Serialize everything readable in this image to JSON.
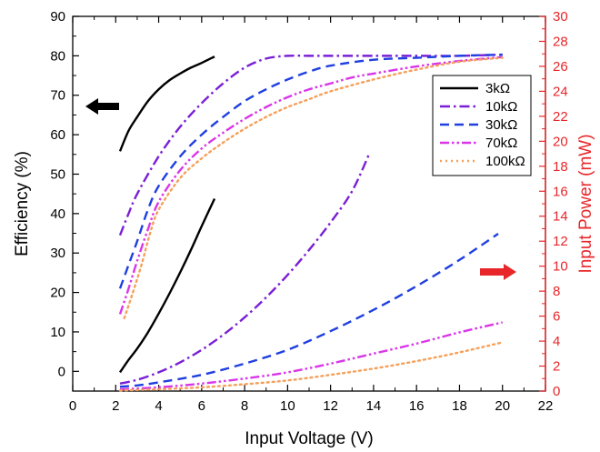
{
  "chart_data": {
    "type": "line",
    "xlabel": "Input Voltage (V)",
    "ylabel_left": "Efficiency (%)",
    "ylabel_right": "Input Power (mW)",
    "xlim": [
      0,
      22
    ],
    "ylim_left": [
      -5,
      90
    ],
    "ylim_right": [
      0,
      30
    ],
    "xticks": [
      "0",
      "2",
      "4",
      "6",
      "8",
      "10",
      "12",
      "14",
      "16",
      "18",
      "20",
      "22"
    ],
    "yticks_left": [
      "0",
      "10",
      "20",
      "30",
      "40",
      "50",
      "60",
      "70",
      "80",
      "90"
    ],
    "yticks_right": [
      "0",
      "2",
      "4",
      "6",
      "8",
      "10",
      "12",
      "14",
      "16",
      "18",
      "20",
      "22",
      "24",
      "26",
      "28",
      "30"
    ],
    "right_axis_color": "#e8262a",
    "grid": false,
    "legend_position": "top-right",
    "series": [
      {
        "name": "3kΩ",
        "color": "#000000",
        "dash": "solid"
      },
      {
        "name": "10kΩ",
        "color": "#7a1fd6",
        "dash": "dashdot"
      },
      {
        "name": "30kΩ",
        "color": "#1f3fe0",
        "dash": "dash"
      },
      {
        "name": "70kΩ",
        "color": "#d936e8",
        "dash": "dashdotdot"
      },
      {
        "name": "100kΩ",
        "color": "#f5a05a",
        "dash": "dot"
      }
    ],
    "efficiency_curves": [
      {
        "series": 0,
        "points": [
          [
            2.2,
            55.8
          ],
          [
            2.6,
            61
          ],
          [
            3,
            64.5
          ],
          [
            3.5,
            68.5
          ],
          [
            4,
            71.5
          ],
          [
            4.5,
            73.8
          ],
          [
            5,
            75.5
          ],
          [
            5.5,
            77
          ],
          [
            6,
            78.2
          ],
          [
            6.6,
            79.8
          ]
        ]
      },
      {
        "series": 1,
        "points": [
          [
            2.2,
            34.5
          ],
          [
            2.6,
            40
          ],
          [
            3,
            45
          ],
          [
            4,
            54.5
          ],
          [
            5,
            62
          ],
          [
            6,
            68
          ],
          [
            7,
            73
          ],
          [
            8,
            77
          ],
          [
            9,
            79.3
          ],
          [
            10,
            80
          ],
          [
            11,
            80
          ],
          [
            12,
            80
          ],
          [
            14,
            80
          ],
          [
            16,
            80
          ],
          [
            18,
            80
          ],
          [
            20,
            80.3
          ]
        ]
      },
      {
        "series": 2,
        "points": [
          [
            2.2,
            21
          ],
          [
            2.6,
            27
          ],
          [
            3,
            33
          ],
          [
            3.5,
            41
          ],
          [
            4,
            47
          ],
          [
            5,
            54.5
          ],
          [
            6,
            60
          ],
          [
            7,
            64.5
          ],
          [
            8,
            68.5
          ],
          [
            9,
            71.5
          ],
          [
            10,
            74
          ],
          [
            11,
            76
          ],
          [
            12,
            77.5
          ],
          [
            14,
            79
          ],
          [
            16,
            79.5
          ],
          [
            18,
            80
          ],
          [
            20,
            80.3
          ]
        ]
      },
      {
        "series": 3,
        "points": [
          [
            2.2,
            14.5
          ],
          [
            2.6,
            21
          ],
          [
            3,
            28
          ],
          [
            3.5,
            36
          ],
          [
            4,
            43
          ],
          [
            5,
            51
          ],
          [
            6,
            56.5
          ],
          [
            7,
            60.5
          ],
          [
            8,
            64
          ],
          [
            9,
            67
          ],
          [
            10,
            69.5
          ],
          [
            11,
            71.5
          ],
          [
            12,
            73
          ],
          [
            13,
            74.5
          ],
          [
            14,
            75.5
          ],
          [
            16,
            77.3
          ],
          [
            18,
            78.7
          ],
          [
            20,
            79.7
          ]
        ]
      },
      {
        "series": 4,
        "points": [
          [
            2.4,
            13.5
          ],
          [
            2.8,
            20
          ],
          [
            3.2,
            27
          ],
          [
            3.6,
            35
          ],
          [
            4,
            41
          ],
          [
            5,
            49
          ],
          [
            6,
            54
          ],
          [
            7,
            58
          ],
          [
            8,
            61.5
          ],
          [
            9,
            64.5
          ],
          [
            10,
            67
          ],
          [
            11,
            69
          ],
          [
            12,
            71
          ],
          [
            14,
            74
          ],
          [
            16,
            76.5
          ],
          [
            18,
            78.5
          ],
          [
            20,
            79.5
          ]
        ]
      }
    ],
    "power_curves": [
      {
        "series": 0,
        "points": [
          [
            2.2,
            1.5
          ],
          [
            2.6,
            2.5
          ],
          [
            3,
            3.4
          ],
          [
            3.5,
            4.7
          ],
          [
            4,
            6.2
          ],
          [
            4.5,
            7.8
          ],
          [
            5,
            9.5
          ],
          [
            5.5,
            11.3
          ],
          [
            6,
            13.2
          ],
          [
            6.6,
            15.4
          ]
        ]
      },
      {
        "series": 1,
        "points": [
          [
            2.2,
            0.6
          ],
          [
            3,
            0.9
          ],
          [
            4,
            1.5
          ],
          [
            5,
            2.3
          ],
          [
            6,
            3.3
          ],
          [
            7,
            4.5
          ],
          [
            8,
            5.9
          ],
          [
            9,
            7.5
          ],
          [
            10,
            9.3
          ],
          [
            11,
            11.3
          ],
          [
            12,
            13.5
          ],
          [
            13,
            16
          ],
          [
            13.8,
            19
          ]
        ]
      },
      {
        "series": 2,
        "points": [
          [
            2.2,
            0.35
          ],
          [
            3,
            0.45
          ],
          [
            4,
            0.7
          ],
          [
            6,
            1.3
          ],
          [
            8,
            2.2
          ],
          [
            10,
            3.3
          ],
          [
            12,
            4.8
          ],
          [
            14,
            6.5
          ],
          [
            16,
            8.4
          ],
          [
            18,
            10.5
          ],
          [
            19.8,
            12.6
          ]
        ]
      },
      {
        "series": 3,
        "points": [
          [
            2.2,
            0.15
          ],
          [
            4,
            0.3
          ],
          [
            6,
            0.6
          ],
          [
            8,
            1
          ],
          [
            10,
            1.5
          ],
          [
            12,
            2.2
          ],
          [
            14,
            3
          ],
          [
            16,
            3.8
          ],
          [
            18,
            4.7
          ],
          [
            20,
            5.5
          ]
        ]
      },
      {
        "series": 4,
        "points": [
          [
            2.2,
            0.05
          ],
          [
            4,
            0.15
          ],
          [
            6,
            0.3
          ],
          [
            8,
            0.55
          ],
          [
            10,
            0.85
          ],
          [
            12,
            1.3
          ],
          [
            14,
            1.8
          ],
          [
            16,
            2.4
          ],
          [
            18,
            3.1
          ],
          [
            20,
            3.9
          ]
        ]
      }
    ],
    "annotations": [
      {
        "type": "arrow",
        "direction": "left",
        "color": "#000000",
        "axis": "left"
      },
      {
        "type": "arrow",
        "direction": "right",
        "color": "#e8262a",
        "axis": "right"
      }
    ]
  }
}
